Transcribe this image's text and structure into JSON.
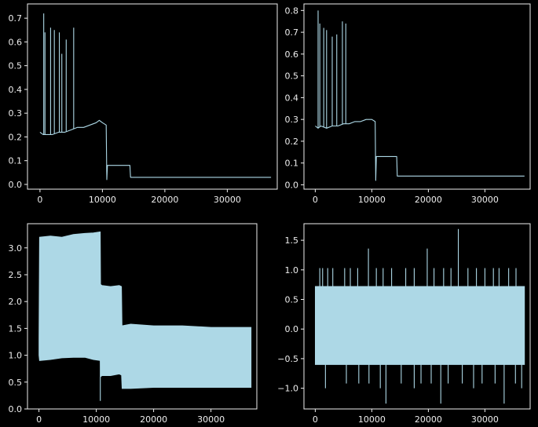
{
  "figure": {
    "background": "#000000",
    "foreground": "#eeeeee",
    "line_color": "#add8e6"
  },
  "chart_data": [
    {
      "type": "line",
      "title": "",
      "xlabel": "",
      "ylabel": "",
      "xlim": [
        -2000,
        38000
      ],
      "ylim": [
        -0.02,
        0.76
      ],
      "xticks": [
        0,
        10000,
        20000,
        30000
      ],
      "yticks": [
        0.0,
        0.1,
        0.2,
        0.3,
        0.4,
        0.5,
        0.6,
        0.7
      ],
      "ytick_labels": [
        "0.0",
        "0.1",
        "0.2",
        "0.3",
        "0.4",
        "0.5",
        "0.6",
        "0.7"
      ],
      "grid": false,
      "series": [
        {
          "x": [
            0,
            500,
            1000,
            2000,
            3000,
            4000,
            5000,
            6000,
            7000,
            8000,
            9000,
            9500,
            10000,
            10600,
            10700,
            10800,
            11500,
            13000,
            14400,
            14500,
            16000,
            20000,
            25000,
            30000,
            35000,
            37000
          ],
          "y": [
            0.22,
            0.21,
            0.21,
            0.21,
            0.22,
            0.22,
            0.23,
            0.24,
            0.24,
            0.25,
            0.26,
            0.27,
            0.26,
            0.25,
            0.02,
            0.08,
            0.08,
            0.08,
            0.08,
            0.03,
            0.03,
            0.03,
            0.03,
            0.03,
            0.03,
            0.03
          ]
        }
      ],
      "spikes": [
        {
          "x": 600,
          "y": 0.72
        },
        {
          "x": 800,
          "y": 0.64
        },
        {
          "x": 1700,
          "y": 0.66
        },
        {
          "x": 2300,
          "y": 0.65
        },
        {
          "x": 3100,
          "y": 0.64
        },
        {
          "x": 3500,
          "y": 0.55
        },
        {
          "x": 4200,
          "y": 0.61
        },
        {
          "x": 5400,
          "y": 0.66
        }
      ],
      "dips": []
    },
    {
      "type": "line",
      "title": "",
      "xlabel": "",
      "ylabel": "",
      "xlim": [
        -2000,
        38000
      ],
      "ylim": [
        -0.02,
        0.83
      ],
      "xticks": [
        0,
        10000,
        20000,
        30000
      ],
      "yticks": [
        0.0,
        0.1,
        0.2,
        0.3,
        0.4,
        0.5,
        0.6,
        0.7,
        0.8
      ],
      "ytick_labels": [
        "0.0",
        "0.1",
        "0.2",
        "0.3",
        "0.4",
        "0.5",
        "0.6",
        "0.7",
        "0.8"
      ],
      "grid": false,
      "series": [
        {
          "x": [
            0,
            500,
            1000,
            2000,
            3000,
            4000,
            5000,
            6000,
            7000,
            8000,
            9000,
            10000,
            10600,
            10700,
            10800,
            11500,
            13000,
            14400,
            14500,
            16000,
            20000,
            25000,
            30000,
            35000,
            37000
          ],
          "y": [
            0.27,
            0.26,
            0.27,
            0.26,
            0.27,
            0.27,
            0.28,
            0.28,
            0.29,
            0.29,
            0.3,
            0.3,
            0.29,
            0.02,
            0.13,
            0.13,
            0.13,
            0.13,
            0.04,
            0.04,
            0.04,
            0.04,
            0.04,
            0.04,
            0.04
          ]
        }
      ],
      "spikes": [
        {
          "x": 500,
          "y": 0.8
        },
        {
          "x": 800,
          "y": 0.74
        },
        {
          "x": 1500,
          "y": 0.72
        },
        {
          "x": 2000,
          "y": 0.71
        },
        {
          "x": 3000,
          "y": 0.68
        },
        {
          "x": 3800,
          "y": 0.69
        },
        {
          "x": 4800,
          "y": 0.75
        },
        {
          "x": 5400,
          "y": 0.74
        }
      ],
      "dips": []
    },
    {
      "type": "area",
      "title": "",
      "xlabel": "",
      "ylabel": "",
      "xlim": [
        -2000,
        38000
      ],
      "ylim": [
        0.0,
        3.45
      ],
      "xticks": [
        0,
        10000,
        20000,
        30000
      ],
      "yticks": [
        0.0,
        0.5,
        1.0,
        1.5,
        2.0,
        2.5,
        3.0
      ],
      "ytick_labels": [
        "0.0",
        "0.5",
        "1.0",
        "1.5",
        "2.0",
        "2.5",
        "3.0"
      ],
      "grid": false,
      "series": [
        {
          "x": [
            0,
            100,
            2000,
            4000,
            6000,
            8000,
            9500,
            10700,
            10750,
            11000,
            12500,
            14000,
            14400,
            14500,
            16000,
            20000,
            25000,
            30000,
            35000,
            37000
          ],
          "upper": [
            1.3,
            3.2,
            3.22,
            3.2,
            3.25,
            3.27,
            3.28,
            3.3,
            2.32,
            2.3,
            2.28,
            2.3,
            2.28,
            1.55,
            1.58,
            1.55,
            1.55,
            1.52,
            1.52,
            1.52
          ],
          "lower": [
            1.0,
            0.9,
            0.92,
            0.95,
            0.96,
            0.96,
            0.92,
            0.9,
            0.6,
            0.62,
            0.62,
            0.65,
            0.63,
            0.38,
            0.38,
            0.4,
            0.4,
            0.4,
            0.4,
            0.4
          ]
        }
      ],
      "spikes": [],
      "dips": [
        {
          "x": 10700,
          "y": 0.15
        }
      ]
    },
    {
      "type": "area",
      "title": "",
      "xlabel": "",
      "ylabel": "",
      "xlim": [
        -2000,
        38000
      ],
      "ylim": [
        -1.35,
        1.78
      ],
      "xticks": [
        0,
        10000,
        20000,
        30000
      ],
      "yticks": [
        -1.0,
        -0.5,
        0.0,
        0.5,
        1.0,
        1.5
      ],
      "ytick_labels": [
        "−1.0",
        "−0.5",
        "0.0",
        "0.5",
        "1.0",
        "1.5"
      ],
      "grid": false,
      "series": [
        {
          "x": [
            0,
            37000
          ],
          "upper": [
            0.72,
            0.72
          ],
          "lower": [
            -0.6,
            -0.6
          ]
        }
      ],
      "spikes": [
        {
          "x": 800,
          "y": 1.03
        },
        {
          "x": 1300,
          "y": 1.03
        },
        {
          "x": 2200,
          "y": 1.03
        },
        {
          "x": 3100,
          "y": 1.03
        },
        {
          "x": 5200,
          "y": 1.03
        },
        {
          "x": 6200,
          "y": 1.03
        },
        {
          "x": 7500,
          "y": 1.03
        },
        {
          "x": 9400,
          "y": 1.36
        },
        {
          "x": 10800,
          "y": 1.03
        },
        {
          "x": 12000,
          "y": 1.03
        },
        {
          "x": 13500,
          "y": 1.03
        },
        {
          "x": 16000,
          "y": 1.03
        },
        {
          "x": 17500,
          "y": 1.03
        },
        {
          "x": 19800,
          "y": 1.36
        },
        {
          "x": 21000,
          "y": 1.03
        },
        {
          "x": 22700,
          "y": 1.03
        },
        {
          "x": 24000,
          "y": 1.03
        },
        {
          "x": 25300,
          "y": 1.69
        },
        {
          "x": 27000,
          "y": 1.03
        },
        {
          "x": 28500,
          "y": 1.03
        },
        {
          "x": 30000,
          "y": 1.03
        },
        {
          "x": 31500,
          "y": 1.03
        },
        {
          "x": 32500,
          "y": 1.03
        },
        {
          "x": 34200,
          "y": 1.03
        },
        {
          "x": 35500,
          "y": 1.03
        }
      ],
      "dips": [
        {
          "x": 1800,
          "y": -1.0
        },
        {
          "x": 5500,
          "y": -0.92
        },
        {
          "x": 7700,
          "y": -0.92
        },
        {
          "x": 9500,
          "y": -0.92
        },
        {
          "x": 11500,
          "y": -1.0
        },
        {
          "x": 12500,
          "y": -1.26
        },
        {
          "x": 15200,
          "y": -0.92
        },
        {
          "x": 17500,
          "y": -1.0
        },
        {
          "x": 18700,
          "y": -0.92
        },
        {
          "x": 20500,
          "y": -0.92
        },
        {
          "x": 22200,
          "y": -1.26
        },
        {
          "x": 23500,
          "y": -0.92
        },
        {
          "x": 26000,
          "y": -0.92
        },
        {
          "x": 28000,
          "y": -1.0
        },
        {
          "x": 29500,
          "y": -0.92
        },
        {
          "x": 31800,
          "y": -0.92
        },
        {
          "x": 33400,
          "y": -1.26
        },
        {
          "x": 35400,
          "y": -0.92
        },
        {
          "x": 36500,
          "y": -1.0
        }
      ]
    }
  ]
}
